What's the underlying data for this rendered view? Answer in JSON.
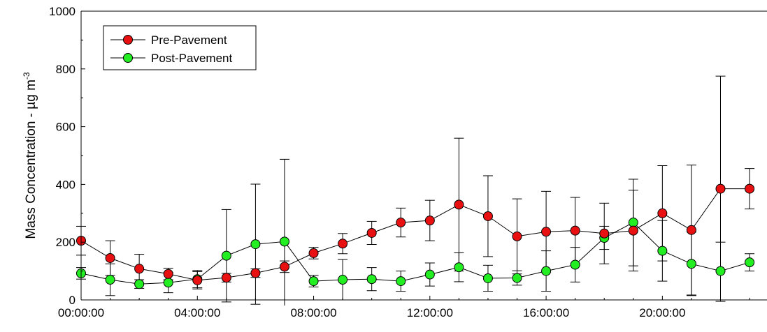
{
  "chart_data": {
    "type": "line",
    "title": "",
    "xlabel": "",
    "ylabel": "Mass Concentration - µg m",
    "ylabel_superscript": "-3",
    "ylim": [
      0,
      1000
    ],
    "xlim": [
      0,
      23
    ],
    "y_ticks": [
      0,
      200,
      400,
      600,
      800,
      1000
    ],
    "x_tick_positions": [
      0,
      4,
      8,
      12,
      16,
      20
    ],
    "x_tick_labels": [
      "00:00:00",
      "04:00:00",
      "08:00:00",
      "12:00:00",
      "16:00:00",
      "20:00:00"
    ],
    "x": [
      0,
      1,
      2,
      3,
      4,
      5,
      6,
      7,
      8,
      9,
      10,
      11,
      12,
      13,
      14,
      15,
      16,
      17,
      18,
      19,
      20,
      21,
      22,
      23
    ],
    "grid": false,
    "legend_position": "top-left",
    "series": [
      {
        "name": "Pre-Pavement",
        "color": "#e81010",
        "values": [
          205,
          145,
          108,
          90,
          68,
          77,
          93,
          115,
          162,
          195,
          232,
          268,
          275,
          330,
          290,
          220,
          236,
          240,
          230,
          240,
          300,
          242,
          385,
          385
        ],
        "error": [
          50,
          60,
          50,
          20,
          30,
          15,
          15,
          20,
          20,
          35,
          40,
          50,
          70,
          230,
          140,
          130,
          140,
          115,
          105,
          140,
          165,
          225,
          390,
          70
        ]
      },
      {
        "name": "Post-Pavement",
        "color": "#22ee22",
        "values": [
          92,
          70,
          55,
          60,
          72,
          153,
          193,
          202,
          65,
          70,
          72,
          65,
          88,
          113,
          75,
          76,
          100,
          122,
          215,
          268,
          170,
          125,
          100,
          130
        ],
        "error": [
          20,
          55,
          15,
          35,
          30,
          160,
          208,
          285,
          20,
          70,
          40,
          35,
          40,
          50,
          45,
          25,
          70,
          60,
          40,
          150,
          105,
          110,
          100,
          30
        ]
      }
    ]
  }
}
